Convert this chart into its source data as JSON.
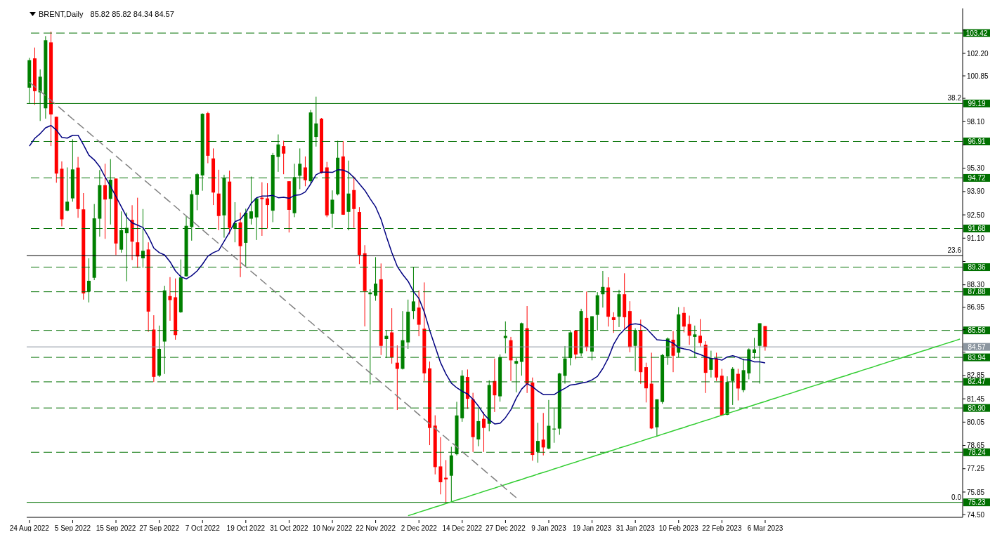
{
  "chart_data": {
    "type": "candlestick",
    "title": "BRENT,Daily",
    "subtitle": "85.82 85.82 84.34 84.57",
    "categories": [
      "24 Aug 2022",
      null,
      null,
      null,
      null,
      null,
      null,
      null,
      "5 Sep 2022",
      null,
      null,
      null,
      null,
      null,
      null,
      null,
      "15 Sep 2022",
      null,
      null,
      null,
      null,
      null,
      null,
      null,
      "27 Sep 2022",
      null,
      null,
      null,
      null,
      null,
      null,
      null,
      "7 Oct 2022",
      null,
      null,
      null,
      null,
      null,
      null,
      null,
      "19 Oct 2022",
      null,
      null,
      null,
      null,
      null,
      null,
      null,
      "31 Oct 2022",
      null,
      null,
      null,
      null,
      null,
      null,
      null,
      "10 Nov 2022",
      null,
      null,
      null,
      null,
      null,
      null,
      null,
      "22 Nov 2022",
      null,
      null,
      null,
      null,
      null,
      null,
      null,
      "2 Dec 2022",
      null,
      null,
      null,
      null,
      null,
      null,
      null,
      "14 Dec 2022",
      null,
      null,
      null,
      null,
      null,
      null,
      null,
      "27 Dec 2022",
      null,
      null,
      null,
      null,
      null,
      null,
      null,
      "9 Jan 2023",
      null,
      null,
      null,
      null,
      null,
      null,
      null,
      "19 Jan 2023",
      null,
      null,
      null,
      null,
      null,
      null,
      null,
      "31 Jan 2023",
      null,
      null,
      null,
      null,
      null,
      null,
      null,
      "10 Feb 2023",
      null,
      null,
      null,
      null,
      null,
      null,
      null,
      "22 Feb 2023",
      null,
      null,
      null,
      null,
      null,
      null,
      null,
      "6 Mar 2023",
      null,
      null,
      null,
      null,
      null,
      null,
      null,
      null,
      null,
      null,
      null,
      null,
      null,
      null,
      null,
      null,
      null,
      null,
      null,
      null,
      null,
      null,
      null,
      null,
      null,
      null,
      null,
      null,
      null,
      null,
      null,
      null,
      null,
      null,
      null,
      null
    ],
    "ohlc": [
      [
        100.14,
        101.93,
        99.18,
        101.79
      ],
      [
        101.9,
        102.55,
        99.11,
        99.93
      ],
      [
        99.86,
        101.24,
        98.14,
        100.8
      ],
      [
        98.9,
        103.24,
        98.28,
        102.99
      ],
      [
        102.86,
        103.51,
        96.63,
        98.53
      ],
      [
        98.39,
        98.39,
        94.43,
        94.98
      ],
      [
        95.27,
        95.71,
        91.81,
        92.23
      ],
      [
        92.75,
        95.35,
        92.71,
        93.29
      ],
      [
        93.49,
        97.04,
        93.29,
        95.23
      ],
      [
        95.34,
        95.98,
        92.32,
        92.85
      ],
      [
        92.83,
        93.81,
        87.41,
        87.78
      ],
      [
        87.89,
        89.89,
        87.24,
        88.54
      ],
      [
        88.72,
        93.15,
        88.58,
        92.29
      ],
      [
        92.27,
        95.19,
        91.19,
        94.28
      ],
      [
        94.28,
        95.57,
        91.06,
        93.42
      ],
      [
        93.46,
        95.85,
        91.92,
        94.61
      ],
      [
        94.68,
        94.68,
        90.09,
        90.78
      ],
      [
        90.41,
        92.71,
        90.23,
        91.58
      ],
      [
        91.4,
        92.64,
        88.51,
        91.72
      ],
      [
        92.2,
        93.08,
        89.79,
        90.89
      ],
      [
        90.85,
        93.53,
        89.31,
        90.0
      ],
      [
        89.89,
        92.85,
        89.31,
        90.34
      ],
      [
        90.42,
        90.85,
        85.48,
        86.69
      ],
      [
        85.61,
        86.47,
        82.46,
        82.77
      ],
      [
        82.84,
        85.85,
        82.76,
        84.45
      ],
      [
        84.89,
        88.24,
        82.94,
        87.96
      ],
      [
        87.62,
        88.76,
        86.14,
        87.38
      ],
      [
        87.55,
        88.68,
        85.0,
        85.28
      ],
      [
        86.65,
        89.82,
        86.61,
        88.74
      ],
      [
        88.81,
        92.43,
        88.79,
        91.84
      ],
      [
        91.77,
        93.97,
        90.95,
        93.74
      ],
      [
        93.7,
        95.01,
        92.78,
        94.94
      ],
      [
        94.87,
        98.6,
        93.95,
        98.57
      ],
      [
        98.61,
        98.69,
        95.6,
        96.05
      ],
      [
        95.89,
        96.49,
        93.09,
        93.84
      ],
      [
        93.78,
        95.21,
        91.58,
        92.43
      ],
      [
        92.47,
        94.91,
        91.13,
        94.74
      ],
      [
        94.5,
        95.16,
        91.33,
        91.72
      ],
      [
        91.7,
        93.26,
        90.85,
        92.01
      ],
      [
        92.05,
        92.64,
        88.76,
        90.62
      ],
      [
        90.82,
        92.87,
        89.4,
        92.63
      ],
      [
        92.27,
        94.8,
        91.92,
        92.71
      ],
      [
        92.35,
        93.53,
        90.99,
        93.49
      ],
      [
        93.53,
        94.46,
        91.24,
        93.45
      ],
      [
        93.49,
        94.4,
        91.68,
        93.09
      ],
      [
        92.75,
        96.22,
        92.06,
        96.09
      ],
      [
        95.98,
        97.33,
        95.08,
        96.73
      ],
      [
        96.63,
        96.95,
        94.94,
        96.18
      ],
      [
        94.52,
        94.52,
        91.44,
        92.8
      ],
      [
        92.6,
        95.57,
        92.36,
        94.77
      ],
      [
        94.85,
        96.49,
        94.04,
        95.57
      ],
      [
        95.35,
        96.01,
        94.22,
        94.58
      ],
      [
        94.52,
        98.8,
        94.36,
        98.65
      ],
      [
        97.18,
        99.6,
        96.6,
        97.99
      ],
      [
        98.28,
        98.32,
        94.98,
        95.01
      ],
      [
        95.35,
        95.68,
        92.36,
        92.47
      ],
      [
        92.56,
        93.97,
        91.72,
        93.41
      ],
      [
        93.74,
        96.95,
        93.67,
        95.93
      ],
      [
        96.01,
        96.93,
        92.5,
        92.51
      ],
      [
        92.68,
        95.76,
        91.57,
        93.78
      ],
      [
        93.99,
        94.8,
        91.72,
        92.85
      ],
      [
        92.67,
        92.96,
        89.54,
        90.09
      ],
      [
        90.19,
        90.68,
        85.8,
        87.92
      ],
      [
        87.73,
        88.03,
        82.32,
        87.84
      ],
      [
        87.64,
        89.96,
        87.34,
        88.37
      ],
      [
        88.63,
        89.58,
        84.08,
        84.63
      ],
      [
        85.04,
        85.55,
        83.9,
        85.23
      ],
      [
        85.44,
        86.89,
        83.56,
        83.94
      ],
      [
        83.62,
        84.66,
        80.78,
        83.25
      ],
      [
        83.25,
        86.72,
        83.21,
        84.97
      ],
      [
        84.84,
        87.41,
        84.45,
        86.68
      ],
      [
        86.72,
        89.36,
        86.24,
        87.3
      ],
      [
        86.93,
        87.96,
        85.21,
        85.9
      ],
      [
        85.66,
        88.44,
        82.52,
        82.98
      ],
      [
        83.28,
        83.69,
        78.67,
        79.7
      ],
      [
        79.84,
        80.46,
        76.91,
        77.35
      ],
      [
        77.39,
        79.15,
        75.71,
        76.44
      ],
      [
        76.71,
        77.77,
        75.19,
        76.61
      ],
      [
        76.83,
        78.57,
        75.23,
        78.05
      ],
      [
        78.12,
        81.27,
        78.05,
        80.45
      ],
      [
        80.28,
        83.17,
        80.07,
        82.84
      ],
      [
        82.76,
        83.21,
        80.84,
        81.45
      ],
      [
        81.42,
        81.81,
        78.26,
        79.15
      ],
      [
        79.01,
        80.87,
        78.6,
        80.11
      ],
      [
        80.25,
        80.64,
        78.26,
        79.7
      ],
      [
        79.95,
        82.56,
        79.5,
        82.28
      ],
      [
        82.52,
        83.87,
        80.66,
        81.66
      ],
      [
        81.6,
        84.12,
        81.28,
        83.95
      ],
      [
        85.1,
        86.1,
        84.18,
        85.23
      ],
      [
        84.97,
        85.17,
        82.52,
        83.76
      ],
      [
        83.56,
        83.9,
        81.84,
        83.72
      ],
      [
        83.67,
        86.03,
        82.84,
        85.99
      ],
      [
        85.69,
        87.02,
        81.8,
        82.36
      ],
      [
        82.43,
        82.73,
        77.73,
        78.08
      ],
      [
        78.26,
        80.01,
        77.61,
        78.92
      ],
      [
        79.0,
        80.6,
        78.05,
        78.53
      ],
      [
        78.46,
        81.38,
        78.42,
        79.83
      ],
      [
        79.61,
        80.87,
        78.81,
        79.66
      ],
      [
        79.66,
        83.01,
        79.29,
        82.97
      ],
      [
        82.83,
        84.62,
        82.36,
        83.87
      ],
      [
        83.9,
        85.52,
        83.46,
        85.44
      ],
      [
        85.55,
        85.58,
        83.83,
        84.11
      ],
      [
        84.18,
        86.86,
        84.01,
        86.72
      ],
      [
        86.31,
        87.89,
        84.31,
        84.55
      ],
      [
        84.29,
        86.41,
        83.76,
        86.41
      ],
      [
        86.49,
        87.86,
        85.55,
        87.67
      ],
      [
        87.73,
        89.13,
        86.93,
        88.17
      ],
      [
        88.14,
        88.75,
        85.79,
        86.38
      ],
      [
        86.35,
        86.65,
        85.41,
        86.18
      ],
      [
        86.38,
        88.0,
        85.76,
        87.73
      ],
      [
        87.73,
        88.99,
        85.66,
        86.35
      ],
      [
        86.72,
        87.31,
        84.25,
        84.55
      ],
      [
        84.63,
        85.69,
        83.12,
        85.58
      ],
      [
        85.55,
        86.21,
        82.35,
        83.05
      ],
      [
        83.35,
        83.62,
        81.23,
        82.08
      ],
      [
        82.36,
        84.22,
        79.63,
        79.67
      ],
      [
        79.74,
        81.42,
        79.19,
        81.42
      ],
      [
        81.26,
        84.15,
        81.15,
        84.08
      ],
      [
        84.0,
        85.14,
        83.49,
        85.07
      ],
      [
        85.0,
        85.52,
        83.05,
        84.04
      ],
      [
        84.22,
        86.96,
        83.94,
        86.52
      ],
      [
        86.61,
        86.97,
        85.44,
        85.79
      ],
      [
        85.94,
        86.45,
        84.69,
        85.24
      ],
      [
        85.17,
        85.85,
        83.9,
        85.32
      ],
      [
        85.24,
        86.24,
        84.59,
        84.8
      ],
      [
        84.7,
        84.91,
        81.8,
        83.01
      ],
      [
        83.19,
        84.34,
        82.73,
        83.9
      ],
      [
        83.87,
        84.22,
        82.52,
        82.73
      ],
      [
        82.84,
        83.25,
        80.43,
        80.46
      ],
      [
        80.49,
        82.8,
        80.46,
        82.46
      ],
      [
        82.52,
        83.35,
        81.08,
        83.25
      ],
      [
        82.95,
        83.25,
        81.35,
        82.07
      ],
      [
        81.97,
        83.86,
        81.84,
        83.17
      ],
      [
        82.98,
        84.48,
        82.62,
        84.42
      ],
      [
        84.2,
        85.11,
        83.86,
        84.42
      ],
      [
        84.63,
        85.99,
        82.36,
        85.99
      ],
      [
        85.82,
        85.82,
        84.34,
        84.57
      ],
      null,
      null,
      null,
      null,
      null,
      null,
      null,
      null,
      null,
      null,
      null,
      null,
      null,
      null,
      null,
      null,
      null,
      null,
      null,
      null,
      null,
      null,
      null,
      null,
      null,
      null,
      null,
      null,
      null,
      null,
      null,
      null,
      null,
      null,
      null,
      null
    ],
    "colors": [
      "#008000",
      "#ff0000",
      "#008000",
      "#008000",
      "#ff0000",
      "#ff0000",
      "#ff0000",
      "#008000",
      "#008000",
      "#ff0000",
      "#ff0000",
      "#008000",
      "#008000",
      "#008000",
      "#ff0000",
      "#008000",
      "#ff0000",
      "#008000",
      "#008000",
      "#ff0000",
      "#ff0000",
      "#008000",
      "#ff0000",
      "#ff0000",
      "#008000",
      "#008000",
      "#ff0000",
      "#ff0000",
      "#008000",
      "#008000",
      "#008000",
      "#008000",
      "#008000",
      "#ff0000",
      "#ff0000",
      "#ff0000",
      "#008000",
      "#ff0000",
      "#008000",
      "#ff0000",
      "#008000",
      "#008000",
      "#008000",
      "#ff0000",
      "#ff0000",
      "#008000",
      "#008000",
      "#ff0000",
      "#ff0000",
      "#008000",
      "#008000",
      "#ff0000",
      "#008000",
      "#008000",
      "#ff0000",
      "#ff0000",
      "#008000",
      "#008000",
      "#ff0000",
      "#008000",
      "#ff0000",
      "#ff0000",
      "#ff0000",
      "#008000",
      "#008000",
      "#ff0000",
      "#008000",
      "#ff0000",
      "#ff0000",
      "#008000",
      "#008000",
      "#008000",
      "#ff0000",
      "#ff0000",
      "#ff0000",
      "#ff0000",
      "#ff0000",
      "#ff0000",
      "#008000",
      "#008000",
      "#008000",
      "#ff0000",
      "#ff0000",
      "#008000",
      "#ff0000",
      "#008000",
      "#ff0000",
      "#008000",
      "#008000",
      "#ff0000",
      "#008000",
      "#008000",
      "#ff0000",
      "#ff0000",
      "#008000",
      "#ff0000",
      "#008000",
      "#008000",
      "#008000",
      "#008000",
      "#008000",
      "#ff0000",
      "#008000",
      "#ff0000",
      "#008000",
      "#008000",
      "#008000",
      "#ff0000",
      "#ff0000",
      "#008000",
      "#ff0000",
      "#ff0000",
      "#008000",
      "#ff0000",
      "#ff0000",
      "#ff0000",
      "#008000",
      "#008000",
      "#008000",
      "#ff0000",
      "#008000",
      "#ff0000",
      "#ff0000",
      "#008000",
      "#ff0000",
      "#ff0000",
      "#008000",
      "#ff0000",
      "#ff0000",
      "#008000",
      "#008000",
      "#ff0000",
      "#008000",
      "#008000",
      "#008000",
      "#008000",
      "#ff0000",
      null,
      null,
      null,
      null,
      null,
      null,
      null,
      null,
      null,
      null,
      null,
      null,
      null,
      null,
      null,
      null,
      null,
      null,
      null,
      null,
      null,
      null,
      null,
      null,
      null,
      null,
      null,
      null,
      null,
      null,
      null,
      null,
      null,
      null,
      null,
      null
    ],
    "series": [
      {
        "type": "line",
        "color": "#000080",
        "values": [
          96.63,
          97.1,
          97.38,
          97.73,
          97.87,
          97.59,
          97.15,
          97.11,
          97.28,
          97.28,
          96.7,
          96.08,
          95.8,
          95.39,
          94.77,
          94.22,
          93.6,
          92.98,
          92.36,
          92.02,
          91.88,
          91.74,
          91.19,
          90.5,
          90.23,
          90.09,
          89.68,
          89.13,
          88.78,
          88.65,
          88.85,
          89.13,
          89.54,
          90.02,
          90.23,
          90.37,
          90.92,
          91.47,
          92.09,
          92.23,
          92.64,
          93.19,
          93.53,
          93.63,
          93.63,
          93.67,
          93.53,
          93.56,
          93.49,
          93.67,
          93.7,
          93.88,
          94.36,
          94.91,
          95.07,
          95.07,
          95.05,
          95.21,
          95.19,
          95.05,
          94.74,
          94.36,
          93.97,
          93.46,
          92.98,
          92.23,
          91.19,
          90.23,
          89.4,
          88.92,
          88.51,
          87.89,
          87.48,
          86.65,
          85.55,
          84.59,
          83.62,
          82.94,
          82.39,
          82.11,
          81.9,
          81.74,
          81.42,
          81.01,
          80.53,
          80.18,
          79.94,
          79.98,
          80.32,
          80.8,
          81.49,
          82.04,
          82.36,
          82.18,
          81.91,
          81.7,
          81.7,
          81.7,
          81.91,
          82.08,
          82.28,
          82.32,
          82.39,
          82.46,
          82.59,
          82.8,
          83.28,
          83.9,
          84.73,
          85.28,
          85.62,
          85.9,
          85.96,
          85.9,
          85.69,
          85.35,
          85.0,
          84.97,
          84.93,
          84.8,
          84.52,
          84.45,
          84.39,
          84.22,
          84.11,
          83.97,
          83.87,
          83.86,
          83.77,
          83.97,
          84.04,
          83.94,
          83.8,
          83.79,
          83.67,
          83.67,
          83.61,
          null,
          null,
          null,
          null,
          null,
          null,
          null,
          null,
          null,
          null,
          null,
          null,
          null,
          null,
          null,
          null,
          null,
          null,
          null,
          null,
          null,
          null,
          null,
          null,
          null,
          null,
          null,
          null,
          null,
          null,
          null,
          null,
          null,
          null,
          null,
          null
        ]
      },
      {
        "type": "line",
        "color": "#32cd32",
        "values": [
          null,
          null,
          null,
          null,
          null,
          null,
          null,
          null,
          null,
          null,
          null,
          null,
          null,
          null,
          null,
          null,
          null,
          null,
          null,
          null,
          null,
          null,
          null,
          null,
          null,
          null,
          null,
          null,
          null,
          null,
          null,
          null,
          null,
          null,
          null,
          null,
          null,
          null,
          null,
          null,
          null,
          null,
          null,
          null,
          null,
          null,
          null,
          null,
          null,
          null,
          null,
          null,
          null,
          null,
          null,
          null,
          null,
          null,
          null,
          null,
          null,
          null,
          null,
          null,
          null,
          null,
          null,
          null,
          null,
          null,
          74.43,
          74.53,
          74.64,
          74.74,
          74.85,
          74.95,
          75.05,
          75.16,
          75.26,
          75.37,
          75.47,
          75.57,
          75.68,
          75.78,
          75.89,
          75.99,
          76.09,
          76.2,
          76.3,
          76.41,
          76.51,
          76.61,
          76.72,
          76.82,
          76.93,
          77.03,
          77.13,
          77.24,
          77.34,
          77.45,
          77.55,
          77.65,
          77.76,
          77.86,
          77.97,
          78.07,
          78.17,
          78.28,
          78.38,
          78.49,
          78.59,
          78.69,
          78.8,
          78.9,
          79.01,
          79.11,
          79.21,
          79.32,
          79.42,
          79.53,
          79.63,
          79.73,
          79.84,
          79.94,
          80.05,
          80.15,
          80.25,
          80.36,
          80.46,
          80.57,
          80.67,
          80.77,
          80.88,
          80.98,
          81.09,
          81.19,
          81.29,
          81.4,
          81.5,
          81.61,
          81.71,
          81.81,
          81.92,
          82.02,
          82.13,
          82.23,
          82.33,
          82.44,
          82.54,
          82.65,
          82.75,
          82.85,
          82.96,
          83.06,
          83.17,
          83.27,
          83.37,
          83.48,
          83.58,
          83.69,
          83.79,
          83.89,
          84.0,
          84.1,
          84.21,
          84.31,
          84.41,
          84.52,
          84.62,
          84.73,
          84.83,
          84.93,
          85.04
        ]
      },
      {
        "type": "line",
        "color": "#808080",
        "line_style": "dashed",
        "values": [
          100.48,
          100.2,
          99.93,
          99.65,
          99.37,
          99.09,
          98.82,
          98.54,
          98.26,
          97.98,
          97.71,
          97.43,
          97.15,
          96.87,
          96.6,
          96.32,
          96.04,
          95.76,
          95.49,
          95.21,
          94.93,
          94.65,
          94.38,
          94.1,
          93.82,
          93.54,
          93.27,
          92.99,
          92.71,
          92.43,
          92.16,
          91.88,
          91.6,
          91.32,
          91.05,
          90.77,
          90.49,
          90.21,
          89.94,
          89.66,
          89.38,
          89.1,
          88.83,
          88.55,
          88.27,
          87.99,
          87.72,
          87.44,
          87.16,
          86.88,
          86.61,
          86.33,
          86.05,
          85.77,
          85.5,
          85.22,
          84.94,
          84.66,
          84.39,
          84.11,
          83.83,
          83.55,
          83.28,
          83.0,
          82.72,
          82.44,
          82.17,
          81.89,
          81.61,
          81.33,
          81.06,
          80.78,
          80.5,
          80.22,
          79.95,
          79.67,
          79.39,
          79.11,
          78.84,
          78.56,
          78.28,
          78.0,
          77.73,
          77.45,
          77.17,
          76.89,
          76.62,
          76.34,
          76.06,
          75.78,
          75.51,
          null,
          null,
          null,
          null,
          null,
          null,
          null,
          null,
          null,
          null,
          null,
          null,
          null,
          null,
          null,
          null,
          null,
          null,
          null,
          null,
          null,
          null,
          null,
          null,
          null,
          null,
          null,
          null,
          null,
          null,
          null,
          null,
          null,
          null,
          null,
          null,
          null,
          null,
          null,
          null,
          null,
          null,
          null,
          null,
          null,
          null,
          null,
          null,
          null,
          null,
          null,
          null,
          null,
          null,
          null,
          null,
          null,
          null,
          null,
          null,
          null,
          null,
          null,
          null,
          null,
          null,
          null,
          null,
          null,
          null,
          null,
          null,
          null,
          null,
          null,
          null,
          null,
          null,
          null,
          null,
          null,
          null
        ]
      }
    ],
    "ylim": [
      74.33,
      104.9
    ],
    "yticks": [
      {
        "value": 74.5,
        "label": "74.50"
      },
      {
        "value": 75.85,
        "label": "75.85"
      },
      {
        "value": 77.25,
        "label": "77.25"
      },
      {
        "value": 78.65,
        "label": "78.65"
      },
      {
        "value": 80.05,
        "label": "80.05"
      },
      {
        "value": 81.45,
        "label": "81.45"
      },
      {
        "value": 82.85,
        "label": "82.85"
      },
      {
        "value": 84.25,
        "label": null
      },
      {
        "value": 85.6,
        "label": null
      },
      {
        "value": 86.95,
        "label": "86.95"
      },
      {
        "value": 88.3,
        "label": "88.30"
      },
      {
        "value": 89.7,
        "label": null
      },
      {
        "value": 91.1,
        "label": "91.10"
      },
      {
        "value": 92.5,
        "label": "92.50"
      },
      {
        "value": 93.9,
        "label": "93.90"
      },
      {
        "value": 95.3,
        "label": "95.30"
      },
      {
        "value": 96.7,
        "label": null
      },
      {
        "value": 98.1,
        "label": "98.10"
      },
      {
        "value": 99.5,
        "label": null
      },
      {
        "value": 100.85,
        "label": "100.85"
      },
      {
        "value": 102.2,
        "label": "102.20"
      },
      {
        "value": 103.6,
        "label": null
      }
    ],
    "ref_lines": [
      {
        "axis": "y",
        "value": 103.42,
        "label": "103.42",
        "color": "#007000",
        "line_style": "dashed"
      },
      {
        "axis": "y",
        "value": 99.19,
        "label": "99.19",
        "color": "#007000",
        "line_style": "solid"
      },
      {
        "axis": "y",
        "value": 96.91,
        "label": "96.91",
        "color": "#007000",
        "line_style": "dashed"
      },
      {
        "axis": "y",
        "value": 94.72,
        "label": "94.72",
        "color": "#007000",
        "line_style": "dashed"
      },
      {
        "axis": "y",
        "value": 91.68,
        "label": "91.68",
        "color": "#007000",
        "line_style": "dashed"
      },
      {
        "axis": "y",
        "value": 90.05,
        "color": "#000000",
        "line_style": "solid"
      },
      {
        "axis": "y",
        "value": 89.36,
        "label": "89.36",
        "color": "#007000",
        "line_style": "dashed"
      },
      {
        "axis": "y",
        "value": 87.88,
        "label": "87.88",
        "color": "#007000",
        "line_style": "dashed"
      },
      {
        "axis": "y",
        "value": 85.56,
        "label": "85.56",
        "color": "#007000",
        "line_style": "dashed"
      },
      {
        "axis": "y",
        "value": 84.57,
        "label": "84.57",
        "color": "#8c96a0",
        "line_style": "solid"
      },
      {
        "axis": "y",
        "value": 83.94,
        "label": "83.94",
        "color": "#007000",
        "line_style": "dashed"
      },
      {
        "axis": "y",
        "value": 82.47,
        "label": "82.47",
        "color": "#007000",
        "line_style": "dashed"
      },
      {
        "axis": "y",
        "value": 80.9,
        "label": "80.90",
        "color": "#007000",
        "line_style": "dashed"
      },
      {
        "axis": "y",
        "value": 78.24,
        "label": "78.24",
        "color": "#007000",
        "line_style": "dashed"
      },
      {
        "axis": "y",
        "value": 75.23,
        "label": "75.23",
        "color": "#007000",
        "line_style": "solid"
      }
    ],
    "annotations": [
      {
        "text": "38.2",
        "y": 99.19
      },
      {
        "text": "23.6",
        "y": 90.05
      },
      {
        "text": "0.0",
        "y": 75.23
      }
    ]
  }
}
